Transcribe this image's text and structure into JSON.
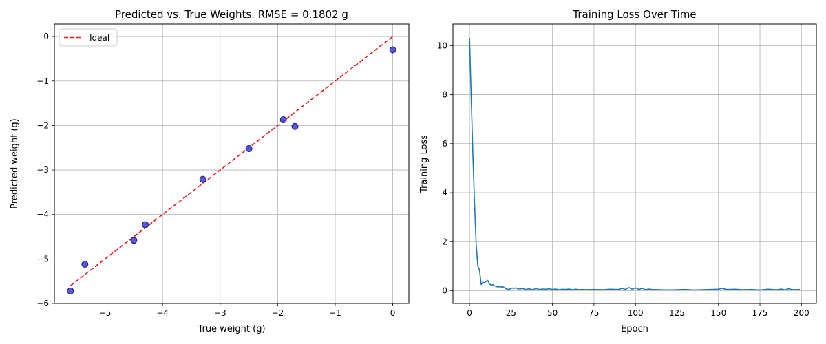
{
  "chart_data": [
    {
      "type": "scatter",
      "title": "Predicted vs. True Weights. RMSE = 0.1802 g",
      "xlabel": "True weight (g)",
      "ylabel": "Predicted weight (g)",
      "xlim": [
        -5.88,
        0.28
      ],
      "ylim": [
        -6,
        0.28
      ],
      "xticks": [
        -5,
        -4,
        -3,
        -2,
        -1,
        0
      ],
      "yticks": [
        -6,
        -5,
        -4,
        -3,
        -2,
        -1,
        0
      ],
      "grid": true,
      "legend": {
        "placement": "upper-left",
        "entries": [
          "Ideal"
        ]
      },
      "colors": {
        "points": "#3b3bdc",
        "point_edge": "#1a1a5e",
        "ideal_line": "#e31a1c"
      },
      "ideal_line": {
        "name": "Ideal",
        "x": [
          -5.6,
          0
        ],
        "y": [
          -5.6,
          0
        ]
      },
      "series": [
        {
          "x": [
            -5.6,
            -5.35,
            -4.5,
            -4.3,
            -3.3,
            -2.5,
            -1.9,
            -1.7,
            0.0
          ],
          "y": [
            -5.72,
            -5.12,
            -4.58,
            -4.23,
            -3.21,
            -2.52,
            -1.87,
            -2.02,
            -0.3
          ]
        }
      ]
    },
    {
      "type": "line",
      "title": "Training Loss Over Time",
      "xlabel": "Epoch",
      "ylabel": "Training Loss",
      "xlim": [
        -10,
        209
      ],
      "ylim": [
        -0.52,
        10.88
      ],
      "xticks": [
        0,
        25,
        50,
        75,
        100,
        125,
        150,
        175,
        200
      ],
      "yticks": [
        0,
        2,
        4,
        6,
        8,
        10
      ],
      "grid": true,
      "colors": {
        "line": "#1f77b4"
      },
      "series": [
        {
          "x": [
            0,
            1,
            2,
            3,
            4,
            5,
            6,
            7,
            8,
            9,
            10,
            11,
            12,
            13,
            14,
            15,
            16,
            17,
            18,
            19,
            20,
            21,
            22,
            23,
            24,
            25,
            26,
            27,
            28,
            29,
            30,
            32,
            34,
            36,
            38,
            40,
            42,
            44,
            46,
            48,
            50,
            52,
            54,
            56,
            58,
            60,
            62,
            64,
            66,
            68,
            70,
            75,
            80,
            85,
            90,
            92,
            94,
            96,
            98,
            100,
            102,
            104,
            106,
            108,
            110,
            115,
            120,
            125,
            130,
            135,
            140,
            145,
            150,
            152,
            155,
            160,
            165,
            170,
            175,
            180,
            185,
            188,
            190,
            192,
            195,
            199
          ],
          "y": [
            10.32,
            7.9,
            5.6,
            3.6,
            1.9,
            1.0,
            0.85,
            0.25,
            0.35,
            0.32,
            0.38,
            0.42,
            0.28,
            0.22,
            0.25,
            0.2,
            0.18,
            0.15,
            0.17,
            0.15,
            0.16,
            0.13,
            0.08,
            0.06,
            0.05,
            0.1,
            0.11,
            0.1,
            0.12,
            0.08,
            0.07,
            0.09,
            0.05,
            0.08,
            0.04,
            0.09,
            0.05,
            0.07,
            0.06,
            0.08,
            0.05,
            0.07,
            0.04,
            0.06,
            0.05,
            0.07,
            0.04,
            0.06,
            0.04,
            0.05,
            0.04,
            0.05,
            0.04,
            0.06,
            0.05,
            0.1,
            0.05,
            0.13,
            0.06,
            0.12,
            0.05,
            0.1,
            0.04,
            0.07,
            0.05,
            0.04,
            0.03,
            0.04,
            0.05,
            0.03,
            0.04,
            0.05,
            0.06,
            0.1,
            0.05,
            0.06,
            0.04,
            0.05,
            0.03,
            0.06,
            0.04,
            0.07,
            0.03,
            0.08,
            0.04,
            0.05
          ]
        }
      ]
    }
  ]
}
